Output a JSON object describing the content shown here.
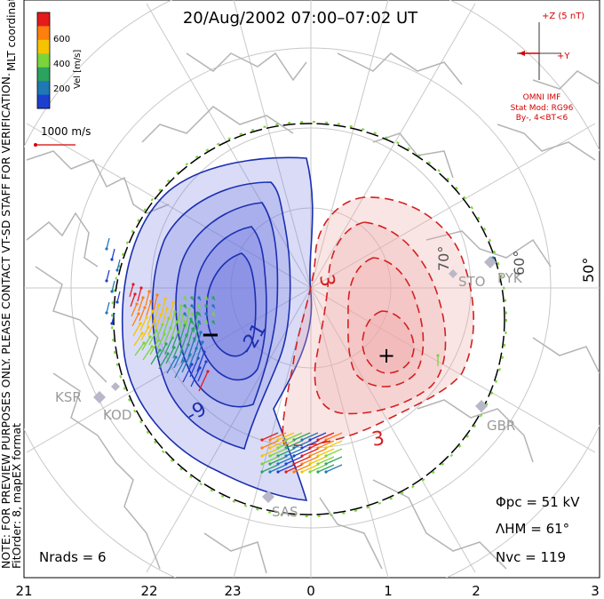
{
  "title": "20/Aug/2002 07:00–07:02 UT",
  "coordinate_label": "MLT coordinates",
  "colorbar": {
    "label": "Vel [m/s]",
    "ticks": [
      "600",
      "400",
      "200"
    ],
    "colors": [
      "#e41a1c",
      "#ff7f0e",
      "#f5c400",
      "#7bd43a",
      "#2ca25f",
      "#1f78b4",
      "#1d3fcf"
    ]
  },
  "vector_scale": {
    "label": "1000 m/s",
    "color": "#d40000"
  },
  "imf": {
    "z_label": "+Z (5 nT)",
    "y_label": "+Y",
    "source": "OMNI IMF",
    "model": "Stat Mod: RG96",
    "condition": "By-, 4<BT<6",
    "color": "#d40000"
  },
  "notes": {
    "preview": "NOTE: FOR PREVIEW PURPOSES ONLY. PLEASE CONTACT VT-SD STAFF FOR VERIFICATION.",
    "fit": "FitOrder: 8, mapEX format"
  },
  "stats": {
    "phi_pc": "Φpc = 51 kV",
    "lambda_hm": "ΛHM = 61°",
    "n_vc": "Nvc = 119",
    "n_rads": "Nrads = 6"
  },
  "mlt_ticks": [
    "21",
    "22",
    "23",
    "0",
    "1",
    "2",
    "3"
  ],
  "lat_labels": [
    "70°",
    "60°",
    "50°"
  ],
  "stations": [
    "KSR",
    "KOD",
    "SAS",
    "GBR",
    "STO",
    "PYK"
  ],
  "contour_labels": {
    "negative": [
      "-21",
      "-9"
    ],
    "positive": [
      "3",
      "3"
    ]
  },
  "markers": {
    "min": "−",
    "max": "+"
  },
  "colors": {
    "negative_contour": "#1b2fb0",
    "positive_contour": "#d42020",
    "negative_fill": "#6a74e0",
    "positive_fill": "#f0a8a8",
    "boundary": "#7bd43a",
    "map": "#b4b4b4"
  }
}
